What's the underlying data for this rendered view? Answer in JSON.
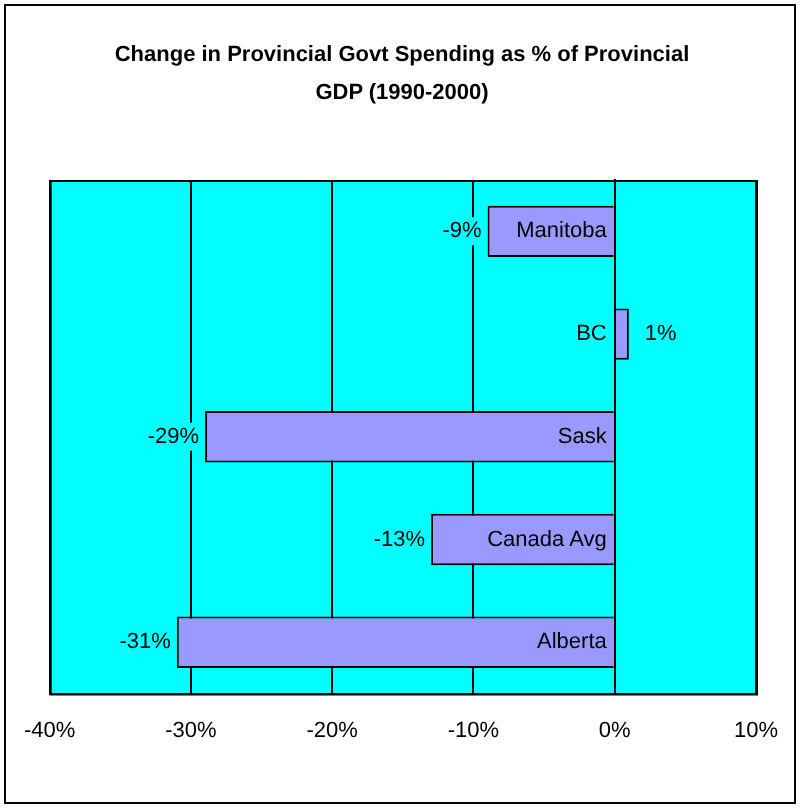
{
  "chart_data": {
    "type": "bar",
    "orientation": "horizontal",
    "title": "Change in Provincial Govt Spending as % of Provincial GDP (1990-2000)",
    "categories": [
      "Manitoba",
      "BC",
      "Sask",
      "Canada Avg",
      "Alberta"
    ],
    "values": [
      -9,
      1,
      -29,
      -13,
      -31
    ],
    "value_labels": [
      "-9%",
      "1%",
      "-29%",
      "-13%",
      "-31%"
    ],
    "color": "#9999ff",
    "xlim": [
      -40,
      10
    ],
    "xticks": [
      {
        "value": -40,
        "label": "-40%"
      },
      {
        "value": -30,
        "label": "-30%"
      },
      {
        "value": -20,
        "label": "-20%"
      },
      {
        "value": -10,
        "label": "-10%"
      },
      {
        "value": 0,
        "label": "0%"
      },
      {
        "value": 10,
        "label": "10%"
      }
    ],
    "grid": "x",
    "legend": false
  }
}
